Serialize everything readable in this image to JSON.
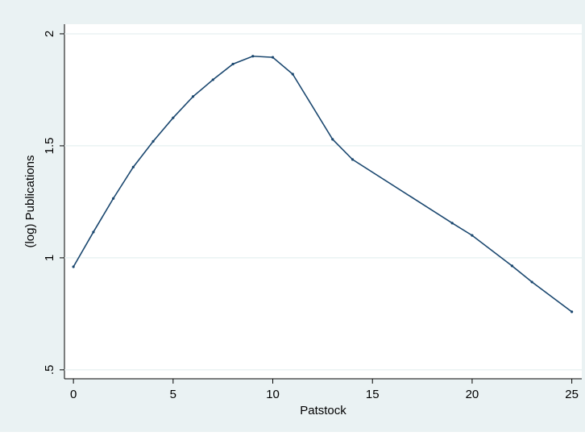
{
  "chart_data": {
    "type": "line",
    "x_label": "Patstock",
    "y_label": "(log) Publications",
    "x": [
      0,
      1,
      2,
      3,
      4,
      5,
      6,
      7,
      8,
      9,
      10,
      11,
      13,
      14,
      19,
      20,
      22,
      23,
      25
    ],
    "series": [
      {
        "name": "(log) Publications",
        "color": "#1a476f",
        "values": [
          0.96,
          1.115,
          1.265,
          1.405,
          1.52,
          1.625,
          1.72,
          1.795,
          1.865,
          1.9,
          1.895,
          1.82,
          1.529,
          1.439,
          1.155,
          1.1,
          0.964,
          0.892,
          0.759
        ]
      }
    ],
    "xlim": [
      -0.45,
      25.5
    ],
    "xticks": [
      0,
      5,
      10,
      15,
      20,
      25
    ],
    "ylim": [
      0.46,
      2.043
    ],
    "yticks": [
      {
        "value": 0.5,
        "label": ".5"
      },
      1,
      1.5,
      2
    ],
    "grid": true
  }
}
